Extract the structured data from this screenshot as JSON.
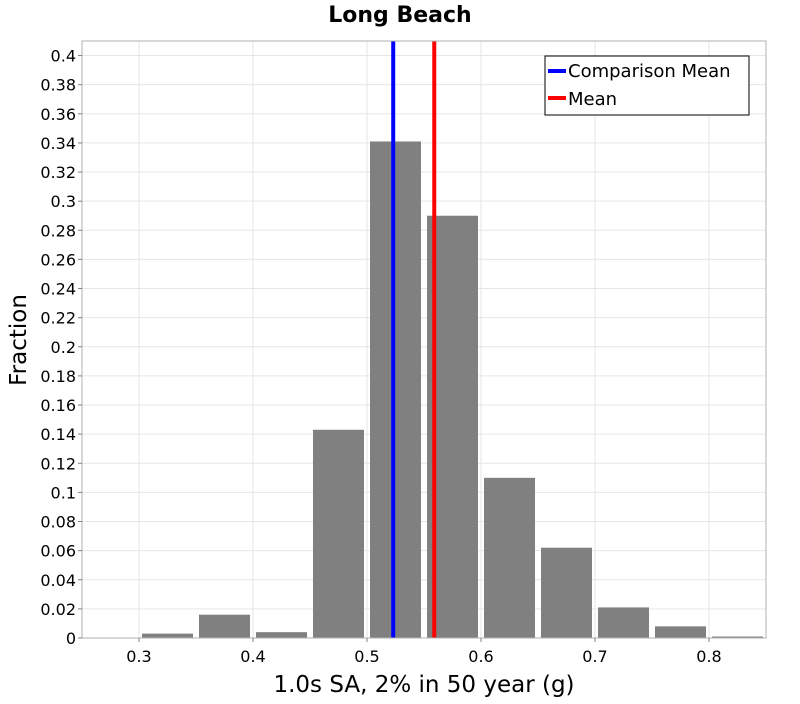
{
  "chart_data": {
    "type": "bar",
    "title": "Long Beach",
    "xlabel": "1.0s SA, 2% in 50 year (g)",
    "ylabel": "Fraction",
    "xlim": [
      0.25,
      0.85
    ],
    "ylim": [
      0,
      0.41
    ],
    "bin_width": 0.05,
    "xticks": [
      "0.3",
      "0.4",
      "0.5",
      "0.6",
      "0.7",
      "0.8"
    ],
    "xtick_values": [
      0.3,
      0.4,
      0.5,
      0.6,
      0.7,
      0.8
    ],
    "yticks": [
      "0",
      "0.02",
      "0.04",
      "0.06",
      "0.08",
      "0.1",
      "0.12",
      "0.14",
      "0.16",
      "0.18",
      "0.2",
      "0.22",
      "0.24",
      "0.26",
      "0.28",
      "0.3",
      "0.32",
      "0.34",
      "0.36",
      "0.38",
      "0.4"
    ],
    "ytick_values": [
      0,
      0.02,
      0.04,
      0.06,
      0.08,
      0.1,
      0.12,
      0.14,
      0.16,
      0.18,
      0.2,
      0.22,
      0.24,
      0.26,
      0.28,
      0.3,
      0.32,
      0.34,
      0.36,
      0.38,
      0.4
    ],
    "bins": [
      {
        "x": 0.275,
        "value": 0.0
      },
      {
        "x": 0.325,
        "value": 0.003
      },
      {
        "x": 0.375,
        "value": 0.016
      },
      {
        "x": 0.425,
        "value": 0.004
      },
      {
        "x": 0.475,
        "value": 0.143
      },
      {
        "x": 0.525,
        "value": 0.341
      },
      {
        "x": 0.575,
        "value": 0.29
      },
      {
        "x": 0.625,
        "value": 0.11
      },
      {
        "x": 0.675,
        "value": 0.062
      },
      {
        "x": 0.725,
        "value": 0.021
      },
      {
        "x": 0.775,
        "value": 0.008
      },
      {
        "x": 0.825,
        "value": 0.001
      }
    ],
    "bar_color": "#808080",
    "vlines": [
      {
        "name": "Comparison Mean",
        "x": 0.523,
        "color": "#0000ff"
      },
      {
        "name": "Mean",
        "x": 0.559,
        "color": "#ff0000"
      }
    ],
    "legend_position": "top-right",
    "grid": true
  }
}
